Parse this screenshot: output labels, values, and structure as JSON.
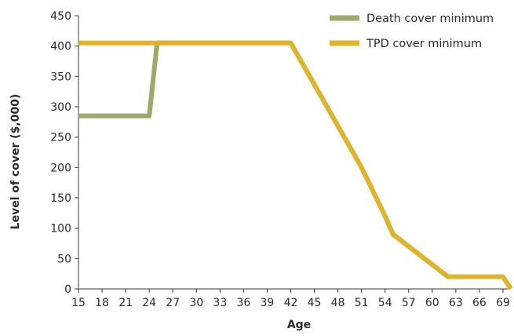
{
  "chart_data": {
    "type": "line",
    "title": "",
    "xlabel": "Age",
    "ylabel": "Level of cover ($,000)",
    "xlim": [
      15,
      70
    ],
    "ylim": [
      0,
      450
    ],
    "x_ticks": [
      15,
      18,
      21,
      24,
      27,
      30,
      33,
      36,
      39,
      42,
      45,
      48,
      51,
      54,
      57,
      60,
      63,
      66,
      69
    ],
    "y_ticks": [
      0,
      50,
      100,
      150,
      200,
      250,
      300,
      350,
      400,
      450
    ],
    "grid": false,
    "legend_position": "top-right",
    "series": [
      {
        "name": "Death cover minimum",
        "color": "#9aaa6a",
        "points": [
          [
            15,
            285
          ],
          [
            24,
            285
          ],
          [
            25,
            405
          ],
          [
            42,
            405
          ],
          [
            51,
            200
          ],
          [
            54,
            120
          ],
          [
            55,
            90
          ],
          [
            62,
            20
          ],
          [
            69,
            20
          ],
          [
            70,
            0
          ]
        ]
      },
      {
        "name": "TPD cover minimum",
        "color": "#dfb42a",
        "points": [
          [
            15,
            405
          ],
          [
            42,
            405
          ],
          [
            51,
            200
          ],
          [
            54,
            120
          ],
          [
            55,
            90
          ],
          [
            62,
            20
          ],
          [
            69,
            20
          ],
          [
            70,
            0
          ]
        ]
      }
    ]
  }
}
